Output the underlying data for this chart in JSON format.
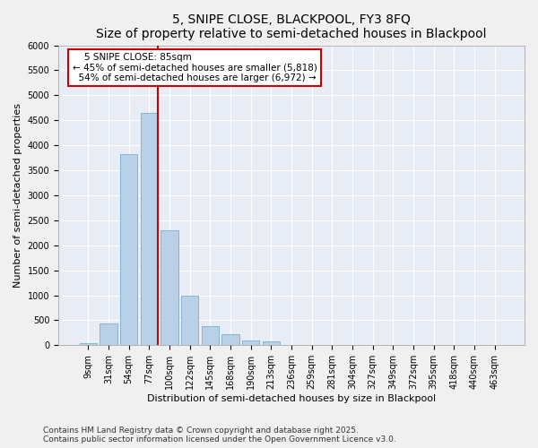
{
  "title": "5, SNIPE CLOSE, BLACKPOOL, FY3 8FQ",
  "subtitle": "Size of property relative to semi-detached houses in Blackpool",
  "xlabel": "Distribution of semi-detached houses by size in Blackpool",
  "ylabel": "Number of semi-detached properties",
  "categories": [
    "9sqm",
    "31sqm",
    "54sqm",
    "77sqm",
    "100sqm",
    "122sqm",
    "145sqm",
    "168sqm",
    "190sqm",
    "213sqm",
    "236sqm",
    "259sqm",
    "281sqm",
    "304sqm",
    "327sqm",
    "349sqm",
    "372sqm",
    "395sqm",
    "418sqm",
    "440sqm",
    "463sqm"
  ],
  "values": [
    50,
    430,
    3820,
    4650,
    2300,
    1000,
    390,
    230,
    100,
    70,
    0,
    0,
    0,
    0,
    0,
    0,
    0,
    0,
    0,
    0,
    0
  ],
  "bar_color": "#b8d0e8",
  "bar_edge_color": "#7aadd4",
  "subject_bin_idx": 3,
  "subject_label": "5 SNIPE CLOSE: 85sqm",
  "smaller_pct": "45%",
  "smaller_count": "5,818",
  "larger_pct": "54%",
  "larger_count": "6,972",
  "annotation_box_color": "#cc0000",
  "vline_color": "#cc0000",
  "footer1": "Contains HM Land Registry data © Crown copyright and database right 2025.",
  "footer2": "Contains public sector information licensed under the Open Government Licence v3.0.",
  "ylim": [
    0,
    6000
  ],
  "yticks": [
    0,
    500,
    1000,
    1500,
    2000,
    2500,
    3000,
    3500,
    4000,
    4500,
    5000,
    5500,
    6000
  ],
  "bg_color": "#e8edf5",
  "grid_color": "#ffffff",
  "title_fontsize": 10,
  "subtitle_fontsize": 9,
  "axis_label_fontsize": 8,
  "tick_fontsize": 7,
  "annotation_fontsize": 7.5,
  "footer_fontsize": 6.5
}
